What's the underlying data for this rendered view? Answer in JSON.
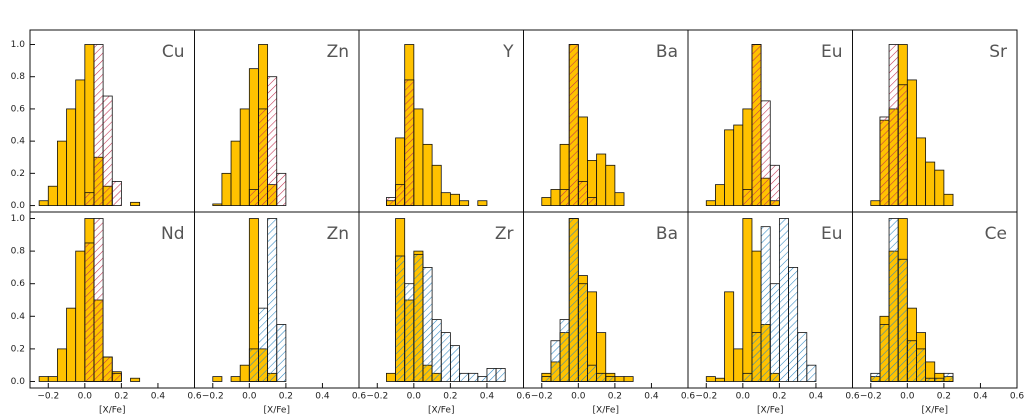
{
  "chart_data": [
    {
      "type": "histogram",
      "label": "Cu",
      "bins": [
        -0.3,
        -0.25,
        -0.2,
        -0.15,
        -0.1,
        -0.05,
        0,
        0.05,
        0.1,
        0.15,
        0.2,
        0.25,
        0.3,
        0.35,
        0.4,
        0.45,
        0.5,
        0.55,
        0.6
      ],
      "xlim": [
        -0.3,
        0.6
      ],
      "ylim": [
        -0.04,
        1.09
      ],
      "yticks": [
        {
          "value": 0,
          "label": "0.0"
        },
        {
          "value": 0.2,
          "label": "0.2"
        },
        {
          "value": 0.4,
          "label": "0.4"
        },
        {
          "value": 0.6,
          "label": "0.6"
        },
        {
          "value": 0.8,
          "label": "0.8"
        },
        {
          "value": 1,
          "label": "1.0"
        }
      ],
      "series": [
        {
          "color": "#ffc200",
          "values": [
            0,
            0.03,
            0.12,
            0.4,
            0.6,
            0.78,
            1.0,
            0.3,
            0.12,
            0,
            0,
            0.02,
            0,
            0,
            0,
            0,
            0,
            0
          ]
        },
        {
          "color": "#c03050",
          "hatch": true,
          "values": [
            0,
            0,
            0,
            0,
            0,
            0,
            0.08,
            1.0,
            0.68,
            0.15,
            0,
            0,
            0,
            0,
            0,
            0,
            0,
            0
          ]
        }
      ]
    },
    {
      "type": "histogram",
      "label": "Zn",
      "bins": [
        -0.3,
        -0.25,
        -0.2,
        -0.15,
        -0.1,
        -0.05,
        0,
        0.05,
        0.1,
        0.15,
        0.2,
        0.25,
        0.3,
        0.35,
        0.4,
        0.45,
        0.5,
        0.55,
        0.6
      ],
      "xlim": [
        -0.3,
        0.6
      ],
      "ylim": [
        -0.04,
        1.09
      ],
      "series": [
        {
          "color": "#ffc200",
          "values": [
            0,
            0,
            0.01,
            0.2,
            0.4,
            0.6,
            0.85,
            1.0,
            0.13,
            0,
            0,
            0,
            0,
            0,
            0,
            0,
            0,
            0
          ]
        },
        {
          "color": "#c03050",
          "hatch": true,
          "values": [
            0,
            0,
            0,
            0,
            0,
            0,
            0.1,
            0.6,
            0.8,
            0.2,
            0,
            0,
            0,
            0,
            0,
            0,
            0,
            0
          ]
        }
      ]
    },
    {
      "type": "histogram",
      "label": "Y",
      "bins": [
        -0.3,
        -0.25,
        -0.2,
        -0.15,
        -0.1,
        -0.05,
        0,
        0.05,
        0.1,
        0.15,
        0.2,
        0.25,
        0.3,
        0.35,
        0.4,
        0.45,
        0.5,
        0.55,
        0.6
      ],
      "xlim": [
        -0.3,
        0.6
      ],
      "ylim": [
        -0.04,
        1.09
      ],
      "series": [
        {
          "color": "#ffc200",
          "values": [
            0,
            0,
            0,
            0.03,
            0.42,
            1.0,
            0.6,
            0.38,
            0.25,
            0.08,
            0.07,
            0.03,
            0,
            0.03,
            0,
            0,
            0,
            0
          ]
        },
        {
          "color": "#c03050",
          "hatch": true,
          "values": [
            0,
            0,
            0,
            0.05,
            0.13,
            0.78,
            0,
            0,
            0,
            0,
            0,
            0,
            0,
            0,
            0,
            0,
            0,
            0
          ]
        }
      ]
    },
    {
      "type": "histogram",
      "label": "Ba",
      "bins": [
        -0.3,
        -0.25,
        -0.2,
        -0.15,
        -0.1,
        -0.05,
        0,
        0.05,
        0.1,
        0.15,
        0.2,
        0.25,
        0.3,
        0.35,
        0.4,
        0.45,
        0.5,
        0.55,
        0.6
      ],
      "xlim": [
        -0.3,
        0.6
      ],
      "ylim": [
        -0.04,
        1.09
      ],
      "series": [
        {
          "color": "#ffc200",
          "values": [
            0,
            0,
            0.05,
            0.1,
            0.38,
            1.0,
            0.55,
            0.28,
            0.32,
            0.25,
            0.08,
            0,
            0,
            0,
            0,
            0,
            0,
            0
          ]
        },
        {
          "color": "#c03050",
          "hatch": true,
          "values": [
            0,
            0,
            0,
            0,
            0.1,
            1.0,
            0.15,
            0.05,
            0,
            0,
            0,
            0,
            0,
            0,
            0,
            0,
            0,
            0
          ]
        }
      ]
    },
    {
      "type": "histogram",
      "label": "Eu",
      "bins": [
        -0.3,
        -0.25,
        -0.2,
        -0.15,
        -0.1,
        -0.05,
        0,
        0.05,
        0.1,
        0.15,
        0.2,
        0.25,
        0.3,
        0.35,
        0.4,
        0.45,
        0.5,
        0.55,
        0.6
      ],
      "xlim": [
        -0.3,
        0.6
      ],
      "ylim": [
        -0.04,
        1.09
      ],
      "series": [
        {
          "color": "#ffc200",
          "values": [
            0,
            0,
            0.03,
            0.13,
            0.47,
            0.5,
            0.6,
            1.0,
            0.17,
            0.03,
            0,
            0,
            0,
            0,
            0,
            0,
            0,
            0
          ]
        },
        {
          "color": "#c03050",
          "hatch": true,
          "values": [
            0,
            0,
            0,
            0,
            0,
            0,
            0.1,
            1.0,
            0.65,
            0.25,
            0,
            0,
            0,
            0,
            0,
            0,
            0,
            0
          ]
        }
      ]
    },
    {
      "type": "histogram",
      "label": "Sr",
      "bins": [
        -0.3,
        -0.25,
        -0.2,
        -0.15,
        -0.1,
        -0.05,
        0,
        0.05,
        0.1,
        0.15,
        0.2,
        0.25,
        0.3,
        0.35,
        0.4,
        0.45,
        0.5,
        0.55,
        0.6
      ],
      "xlim": [
        -0.3,
        0.6
      ],
      "ylim": [
        -0.04,
        1.09
      ],
      "series": [
        {
          "color": "#ffc200",
          "values": [
            0,
            0,
            0.03,
            0.53,
            0.6,
            1.0,
            0.78,
            0.42,
            0.27,
            0.22,
            0.07,
            0,
            0,
            0,
            0,
            0,
            0,
            0
          ]
        },
        {
          "color": "#c03050",
          "hatch": true,
          "values": [
            0,
            0,
            0,
            0.55,
            1.0,
            0.75,
            0,
            0,
            0,
            0,
            0,
            0,
            0,
            0,
            0,
            0,
            0,
            0
          ]
        }
      ]
    },
    {
      "type": "histogram",
      "label": "Nd",
      "xlabel": "[X/Fe]",
      "bins": [
        -0.3,
        -0.25,
        -0.2,
        -0.15,
        -0.1,
        -0.05,
        0,
        0.05,
        0.1,
        0.15,
        0.2,
        0.25,
        0.3,
        0.35,
        0.4,
        0.45,
        0.5,
        0.55,
        0.6
      ],
      "xlim": [
        -0.3,
        0.6
      ],
      "ylim": [
        -0.04,
        1.04
      ],
      "xticks": [
        {
          "value": -0.2,
          "label": "−0.2"
        },
        {
          "value": 0,
          "label": "0.0"
        },
        {
          "value": 0.2,
          "label": "0.2"
        },
        {
          "value": 0.4,
          "label": "0.4"
        },
        {
          "value": 0.6,
          "label": "0.6"
        }
      ],
      "yticks": [
        {
          "value": 0,
          "label": "0.0"
        },
        {
          "value": 0.2,
          "label": "0.2"
        },
        {
          "value": 0.4,
          "label": "0.4"
        },
        {
          "value": 0.6,
          "label": "0.6"
        },
        {
          "value": 0.8,
          "label": "0.8"
        },
        {
          "value": 1,
          "label": "1.0"
        }
      ],
      "series": [
        {
          "color": "#ffc200",
          "values": [
            0,
            0.03,
            0.03,
            0.2,
            0.45,
            0.8,
            1.0,
            0.5,
            0.15,
            0.06,
            0,
            0.02,
            0,
            0,
            0,
            0,
            0,
            0
          ]
        },
        {
          "color": "#c03050",
          "hatch": true,
          "values": [
            0,
            0,
            0,
            0,
            0,
            0,
            0.85,
            1.0,
            0.15,
            0.05,
            0,
            0,
            0,
            0,
            0,
            0,
            0,
            0
          ]
        }
      ]
    },
    {
      "type": "histogram",
      "label": "Zn",
      "xlabel": "[X/Fe]",
      "bins": [
        -0.3,
        -0.25,
        -0.2,
        -0.15,
        -0.1,
        -0.05,
        0,
        0.05,
        0.1,
        0.15,
        0.2,
        0.25,
        0.3,
        0.35,
        0.4,
        0.45,
        0.5,
        0.55,
        0.6
      ],
      "xlim": [
        -0.3,
        0.6
      ],
      "ylim": [
        -0.04,
        1.04
      ],
      "xticks": [
        {
          "value": -0.2,
          "label": "−0.2"
        },
        {
          "value": 0,
          "label": "0.0"
        },
        {
          "value": 0.2,
          "label": "0.2"
        },
        {
          "value": 0.4,
          "label": "0.4"
        },
        {
          "value": 0.6,
          "label": "0.6"
        }
      ],
      "series": [
        {
          "color": "#ffc200",
          "values": [
            0,
            0,
            0.03,
            0,
            0.03,
            0.1,
            1.0,
            0.2,
            0.05,
            0,
            0,
            0,
            0,
            0,
            0,
            0,
            0,
            0
          ]
        },
        {
          "color": "#2e86c1",
          "hatch": true,
          "values": [
            0,
            0,
            0,
            0,
            0,
            0,
            0.2,
            0.45,
            1.0,
            0.35,
            0,
            0,
            0,
            0,
            0,
            0,
            0,
            0
          ]
        }
      ]
    },
    {
      "type": "histogram",
      "label": "Zr",
      "xlabel": "[X/Fe]",
      "bins": [
        -0.3,
        -0.25,
        -0.2,
        -0.15,
        -0.1,
        -0.05,
        0,
        0.05,
        0.1,
        0.15,
        0.2,
        0.25,
        0.3,
        0.35,
        0.4,
        0.45,
        0.5,
        0.55,
        0.6
      ],
      "xlim": [
        -0.3,
        0.6
      ],
      "ylim": [
        -0.04,
        1.04
      ],
      "xticks": [
        {
          "value": -0.2,
          "label": "−0.2"
        },
        {
          "value": 0,
          "label": "0.0"
        },
        {
          "value": 0.2,
          "label": "0.2"
        },
        {
          "value": 0.4,
          "label": "0.4"
        },
        {
          "value": 0.6,
          "label": "0.6"
        }
      ],
      "series": [
        {
          "color": "#ffc200",
          "values": [
            0,
            0,
            0,
            0.05,
            1.0,
            0.5,
            0.8,
            0.1,
            0.05,
            0,
            0,
            0,
            0,
            0,
            0,
            0,
            0,
            0
          ]
        },
        {
          "color": "#2e86c1",
          "hatch": true,
          "values": [
            0,
            0,
            0,
            0,
            0.77,
            0.6,
            0.78,
            0.7,
            0.38,
            0.3,
            0.22,
            0.05,
            0.05,
            0.03,
            0.08,
            0.08,
            0,
            0
          ]
        }
      ]
    },
    {
      "type": "histogram",
      "label": "Ba",
      "xlabel": "[X/Fe]",
      "bins": [
        -0.3,
        -0.25,
        -0.2,
        -0.15,
        -0.1,
        -0.05,
        0,
        0.05,
        0.1,
        0.15,
        0.2,
        0.25,
        0.3,
        0.35,
        0.4,
        0.45,
        0.5,
        0.55,
        0.6
      ],
      "xlim": [
        -0.3,
        0.6
      ],
      "ylim": [
        -0.04,
        1.04
      ],
      "xticks": [
        {
          "value": -0.2,
          "label": "−0.2"
        },
        {
          "value": 0,
          "label": "0.0"
        },
        {
          "value": 0.2,
          "label": "0.2"
        },
        {
          "value": 0.4,
          "label": "0.4"
        },
        {
          "value": 0.6,
          "label": "0.6"
        }
      ],
      "series": [
        {
          "color": "#ffc200",
          "values": [
            0,
            0,
            0.05,
            0.12,
            0.3,
            1.0,
            0.65,
            0.55,
            0.3,
            0.05,
            0.03,
            0.03,
            0,
            0,
            0,
            0,
            0,
            0
          ]
        },
        {
          "color": "#2e86c1",
          "hatch": true,
          "values": [
            0,
            0,
            0.03,
            0.25,
            0.38,
            1.0,
            0.6,
            0.1,
            0.05,
            0.03,
            0,
            0,
            0,
            0,
            0,
            0,
            0,
            0
          ]
        }
      ]
    },
    {
      "type": "histogram",
      "label": "Eu",
      "xlabel": "[X/Fe]",
      "bins": [
        -0.3,
        -0.25,
        -0.2,
        -0.15,
        -0.1,
        -0.05,
        0,
        0.05,
        0.1,
        0.15,
        0.2,
        0.25,
        0.3,
        0.35,
        0.4,
        0.45,
        0.5,
        0.55,
        0.6
      ],
      "xlim": [
        -0.3,
        0.6
      ],
      "ylim": [
        -0.04,
        1.04
      ],
      "xticks": [
        {
          "value": -0.2,
          "label": "−0.2"
        },
        {
          "value": 0,
          "label": "0.0"
        },
        {
          "value": 0.2,
          "label": "0.2"
        },
        {
          "value": 0.4,
          "label": "0.4"
        },
        {
          "value": 0.6,
          "label": "0.6"
        }
      ],
      "series": [
        {
          "color": "#ffc200",
          "values": [
            0,
            0,
            0.03,
            0.02,
            0.55,
            0.2,
            1.0,
            0.8,
            0.35,
            0.05,
            0,
            0,
            0,
            0,
            0,
            0,
            0,
            0
          ]
        },
        {
          "color": "#2e86c1",
          "hatch": true,
          "values": [
            0,
            0,
            0,
            0,
            0,
            0,
            0.05,
            0.3,
            0.95,
            0.6,
            1.0,
            0.7,
            0.3,
            0.1,
            0,
            0,
            0,
            0
          ]
        }
      ]
    },
    {
      "type": "histogram",
      "label": "Ce",
      "xlabel": "[X/Fe]",
      "bins": [
        -0.3,
        -0.25,
        -0.2,
        -0.15,
        -0.1,
        -0.05,
        0,
        0.05,
        0.1,
        0.15,
        0.2,
        0.25,
        0.3,
        0.35,
        0.4,
        0.45,
        0.5,
        0.55,
        0.6
      ],
      "xlim": [
        -0.3,
        0.6
      ],
      "ylim": [
        -0.04,
        1.04
      ],
      "xticks": [
        {
          "value": -0.2,
          "label": "−0.2"
        },
        {
          "value": 0,
          "label": "0.0"
        },
        {
          "value": 0.2,
          "label": "0.2"
        },
        {
          "value": 0.4,
          "label": "0.4"
        },
        {
          "value": 0.6,
          "label": "0.6"
        }
      ],
      "series": [
        {
          "color": "#ffc200",
          "values": [
            0,
            0,
            0.03,
            0.4,
            0.8,
            1.0,
            0.45,
            0.3,
            0.12,
            0.05,
            0.03,
            0,
            0,
            0,
            0,
            0,
            0,
            0
          ]
        },
        {
          "color": "#2e86c1",
          "hatch": true,
          "values": [
            0,
            0,
            0.05,
            0.35,
            1.0,
            0.75,
            0.25,
            0.2,
            0.02,
            0.02,
            0.05,
            0,
            0,
            0,
            0,
            0,
            0,
            0
          ]
        }
      ]
    }
  ]
}
